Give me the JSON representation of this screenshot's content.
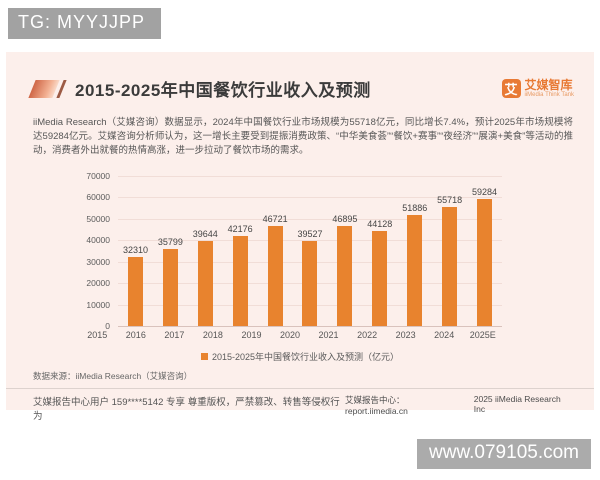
{
  "badges": {
    "tg": "TG: MYYJJPP",
    "watermark": "www.079105.com"
  },
  "header": {
    "title": "2015-2025年中国餐饮行业收入及预测",
    "logo": {
      "icon_char": "艾",
      "name": "艾媒智库",
      "subtitle": "iiMedia Think Tank"
    }
  },
  "body_text": "iiMedia Research（艾媒咨询）数据显示，2024年中国餐饮行业市场规模为55718亿元，同比增长7.4%，预计2025年市场规模将达59284亿元。艾媒咨询分析师认为，这一增长主要受到提振消费政策、“中华美食荟”“餐饮+赛事”“夜经济”“展演+美食”等活动的推动，消费者外出就餐的热情高涨，进一步拉动了餐饮市场的需求。",
  "chart_data": {
    "type": "bar",
    "categories": [
      "2015",
      "2016",
      "2017",
      "2018",
      "2019",
      "2020",
      "2021",
      "2022",
      "2023",
      "2024",
      "2025E"
    ],
    "values": [
      32310,
      35799,
      39644,
      42176,
      46721,
      39527,
      46895,
      44128,
      51886,
      55718,
      59284
    ],
    "title": "2015-2025年中国餐饮行业收入及预测",
    "xlabel": "",
    "ylabel": "",
    "ylim": [
      0,
      70000
    ],
    "yticks": [
      0,
      10000,
      20000,
      30000,
      40000,
      50000,
      60000,
      70000
    ],
    "grid": true,
    "legend": "2015-2025年中国餐饮行业收入及预测（亿元）",
    "legend_position": "bottom",
    "bar_color": "#e8832e",
    "unit": "亿元"
  },
  "source": "数据来源：iiMedia Research（艾媒咨询）",
  "footer": {
    "left": "艾媒报告中心用户 159****5142 专享 尊重版权，严禁篡改、转售等侵权行为",
    "right_center": "艾媒报告中心：report.iimedia.cn",
    "right_year": "2025 iiMedia Research Inc"
  },
  "colors": {
    "accent_orange": "#e8832e",
    "card_background": "#fcefeb",
    "badge_gray": "#a2a2a2",
    "logo_orange": "#e87a35"
  }
}
